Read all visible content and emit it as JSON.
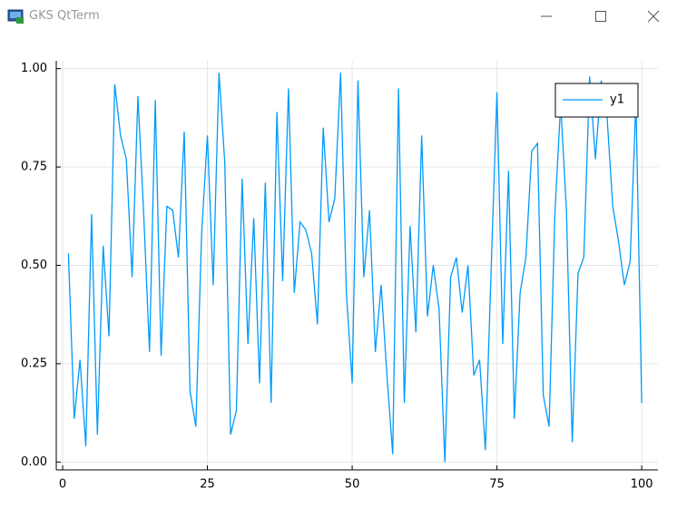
{
  "window": {
    "title": "GKS QtTerm"
  },
  "chart_data": {
    "type": "line",
    "x": [
      1,
      2,
      3,
      4,
      5,
      6,
      7,
      8,
      9,
      10,
      11,
      12,
      13,
      14,
      15,
      16,
      17,
      18,
      19,
      20,
      21,
      22,
      23,
      24,
      25,
      26,
      27,
      28,
      29,
      30,
      31,
      32,
      33,
      34,
      35,
      36,
      37,
      38,
      39,
      40,
      41,
      42,
      43,
      44,
      45,
      46,
      47,
      48,
      49,
      50,
      51,
      52,
      53,
      54,
      55,
      56,
      57,
      58,
      59,
      60,
      61,
      62,
      63,
      64,
      65,
      66,
      67,
      68,
      69,
      70,
      71,
      72,
      73,
      74,
      75,
      76,
      77,
      78,
      79,
      80,
      81,
      82,
      83,
      84,
      85,
      86,
      87,
      88,
      89,
      90,
      91,
      92,
      93,
      94,
      95,
      96,
      97,
      98,
      99,
      100
    ],
    "series": [
      {
        "name": "y1",
        "color": "#009afa",
        "values": [
          0.53,
          0.11,
          0.26,
          0.04,
          0.63,
          0.07,
          0.55,
          0.32,
          0.96,
          0.83,
          0.77,
          0.47,
          0.93,
          0.63,
          0.28,
          0.92,
          0.27,
          0.65,
          0.64,
          0.52,
          0.84,
          0.18,
          0.09,
          0.58,
          0.83,
          0.45,
          0.99,
          0.76,
          0.07,
          0.13,
          0.72,
          0.3,
          0.62,
          0.2,
          0.71,
          0.15,
          0.89,
          0.46,
          0.95,
          0.43,
          0.61,
          0.59,
          0.53,
          0.35,
          0.85,
          0.61,
          0.67,
          0.99,
          0.43,
          0.2,
          0.97,
          0.47,
          0.64,
          0.28,
          0.45,
          0.22,
          0.02,
          0.95,
          0.15,
          0.6,
          0.33,
          0.83,
          0.37,
          0.5,
          0.39,
          0.0,
          0.47,
          0.52,
          0.38,
          0.5,
          0.22,
          0.26,
          0.03,
          0.49,
          0.94,
          0.3,
          0.74,
          0.11,
          0.43,
          0.52,
          0.79,
          0.81,
          0.17,
          0.09,
          0.63,
          0.91,
          0.64,
          0.05,
          0.48,
          0.52,
          0.98,
          0.77,
          0.97,
          0.88,
          0.65,
          0.56,
          0.45,
          0.51,
          0.92,
          0.15
        ]
      }
    ],
    "xlim": [
      -1.1,
      102.8
    ],
    "ylim": [
      -0.02,
      1.02
    ],
    "xticks": [
      0,
      25,
      50,
      75,
      100
    ],
    "yticks": [
      {
        "value": 0,
        "label": "0.00"
      },
      {
        "value": 0.25,
        "label": "0.25"
      },
      {
        "value": 0.5,
        "label": "0.50"
      },
      {
        "value": 0.75,
        "label": "0.75"
      },
      {
        "value": 1,
        "label": "1.00"
      }
    ],
    "grid": true,
    "legend": "upper right"
  }
}
